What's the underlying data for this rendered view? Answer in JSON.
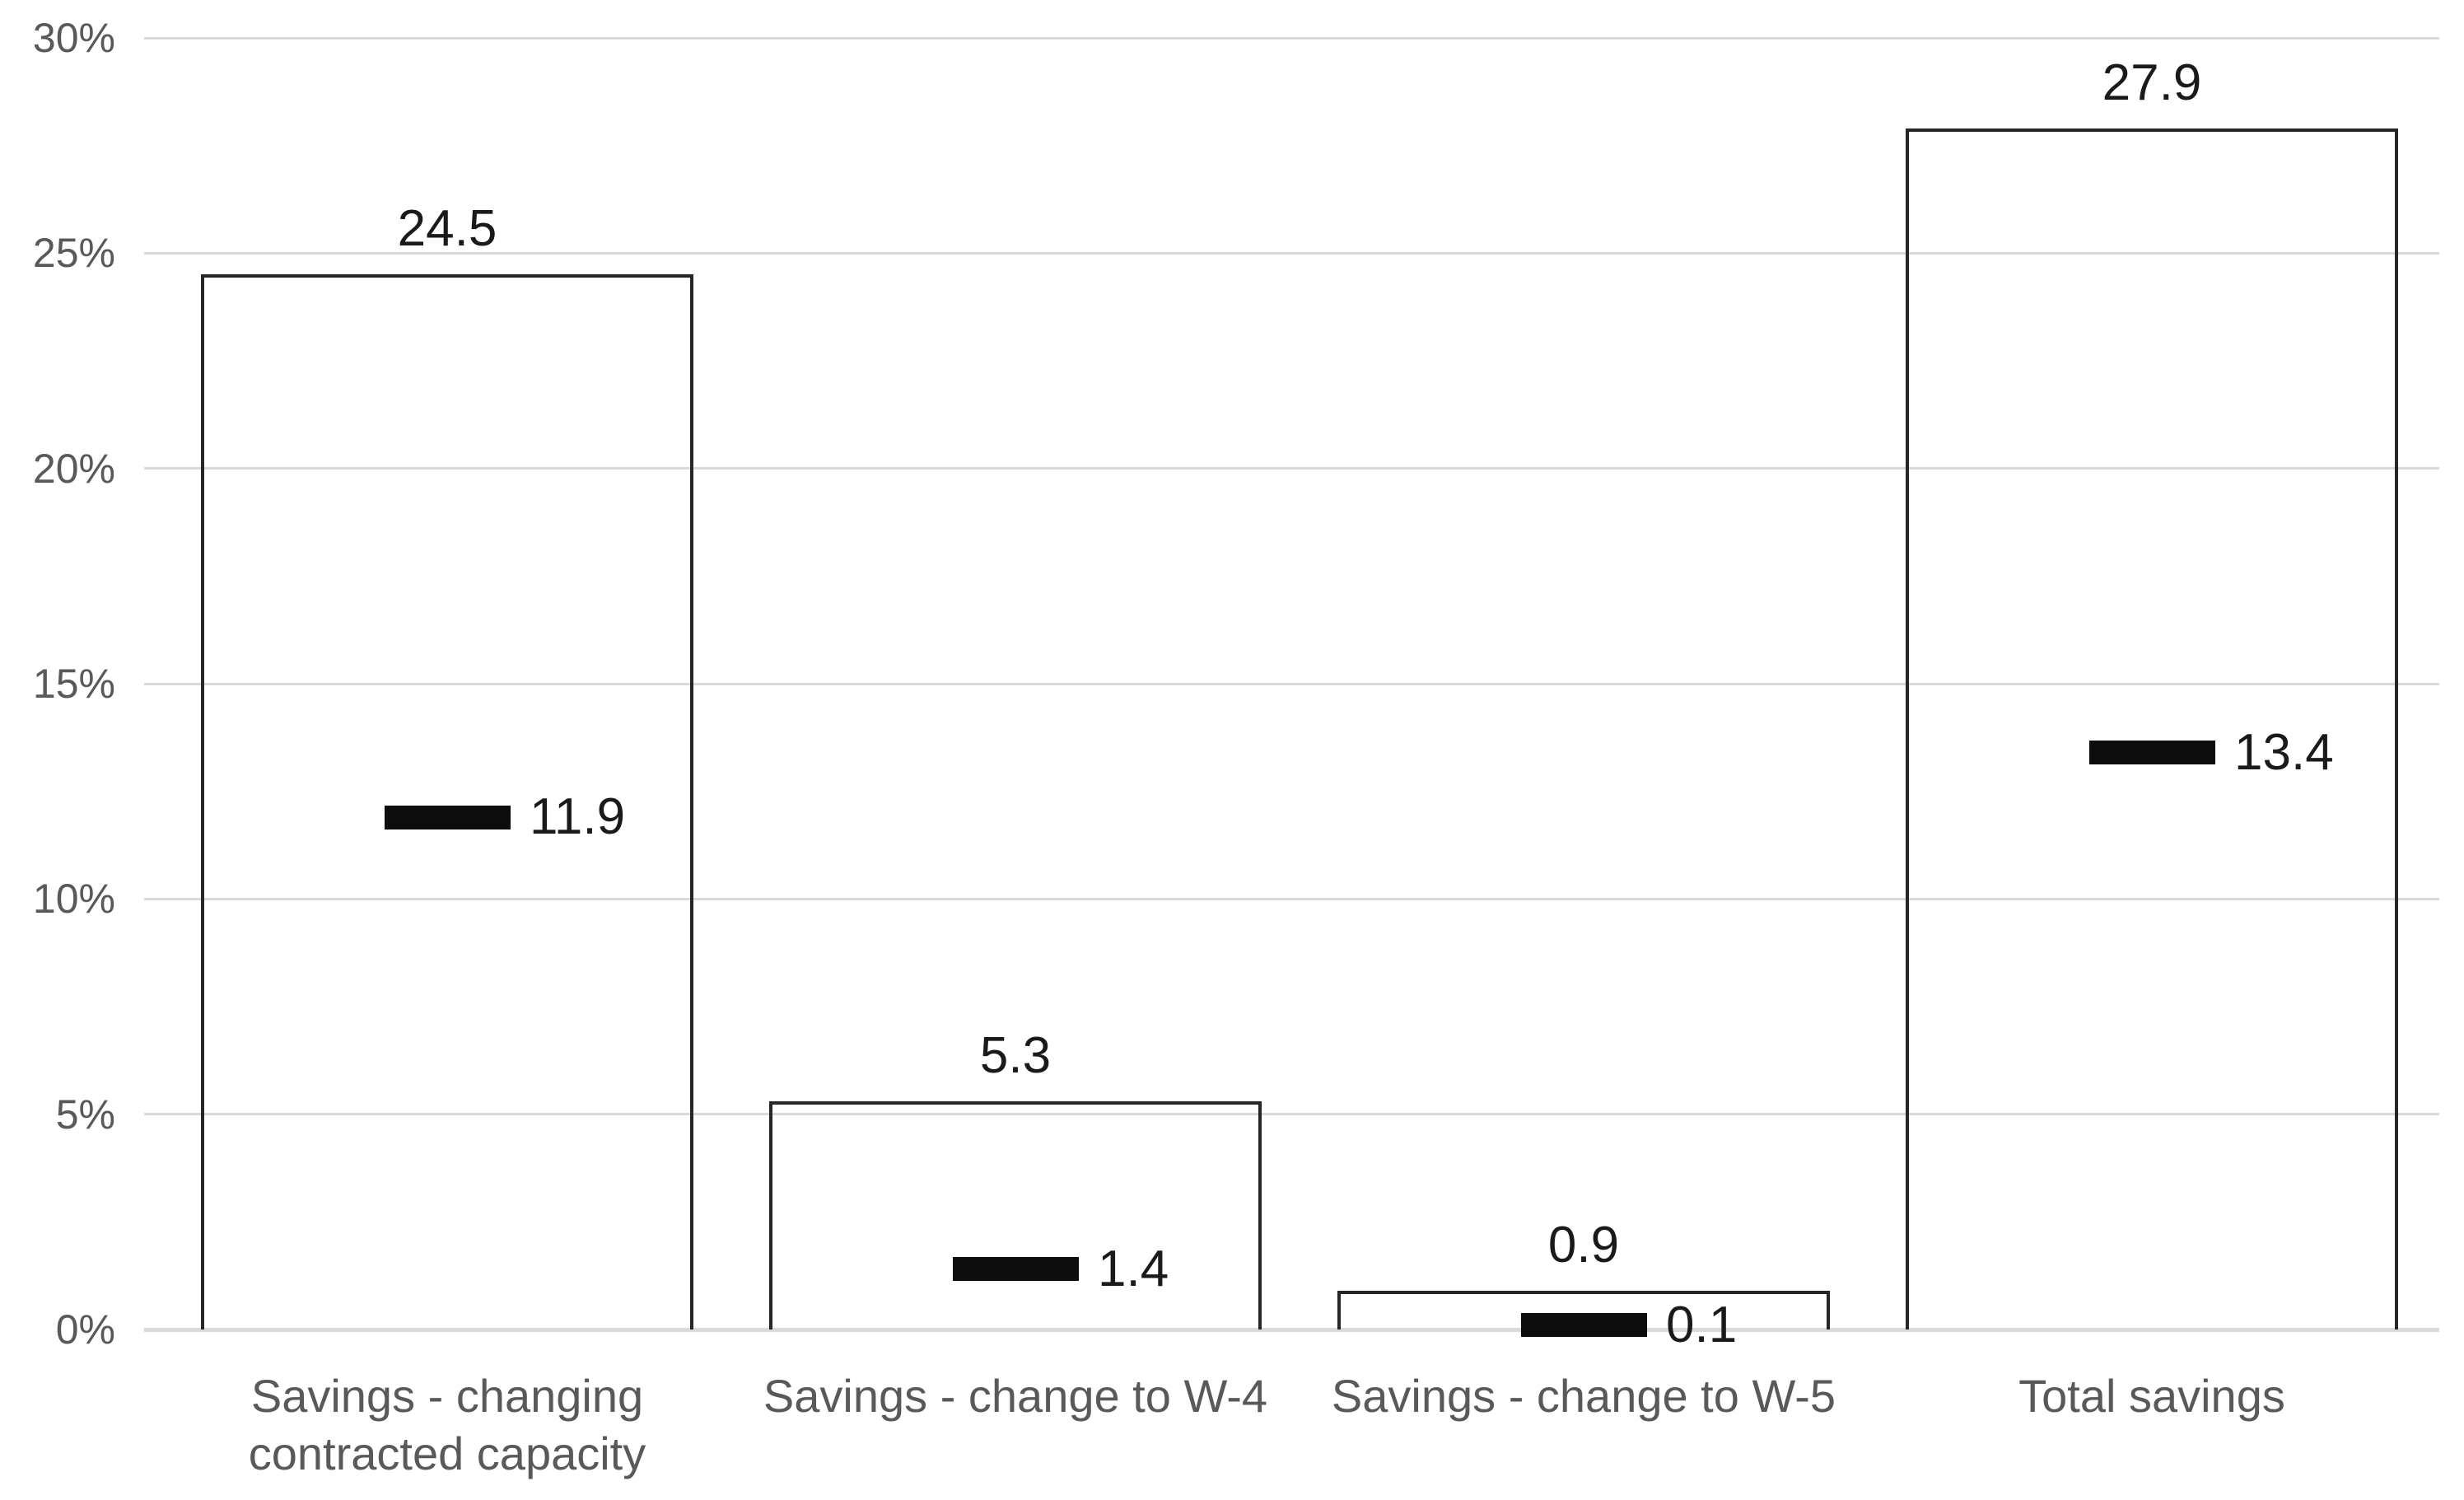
{
  "chart_data": {
    "type": "bar",
    "title": "",
    "xlabel": "",
    "ylabel": "",
    "categories": [
      "Savings - changing contracted capacity",
      "Savings - change to W-4",
      "Savings - change to W-5",
      "Total savings"
    ],
    "series": [
      {
        "name": "column-outline",
        "type": "bar",
        "values": [
          24.5,
          5.3,
          0.9,
          27.9
        ],
        "labels": [
          "24.5",
          "5.3",
          "0.9",
          "27.9"
        ]
      },
      {
        "name": "dash-marker",
        "type": "scatter",
        "values": [
          11.9,
          1.4,
          0.1,
          13.4
        ],
        "labels": [
          "11.9",
          "1.4",
          "0.1",
          "13.4"
        ]
      }
    ],
    "ylim": [
      0,
      30
    ],
    "yticks": [
      {
        "value": 0,
        "label": "0%"
      },
      {
        "value": 5,
        "label": "5%"
      },
      {
        "value": 10,
        "label": "10%"
      },
      {
        "value": 15,
        "label": "15%"
      },
      {
        "value": 20,
        "label": "20%"
      },
      {
        "value": 25,
        "label": "25%"
      },
      {
        "value": 30,
        "label": "30%"
      }
    ],
    "grid": true,
    "legend": false,
    "colors": {
      "background": "#ffffff",
      "gridline": "#d9d9d9",
      "axis_text": "#595959",
      "data_label": "#1a1a1a",
      "bar_border": "#262626",
      "bar_fill": "transparent",
      "marker": "#0d0d0d"
    }
  }
}
